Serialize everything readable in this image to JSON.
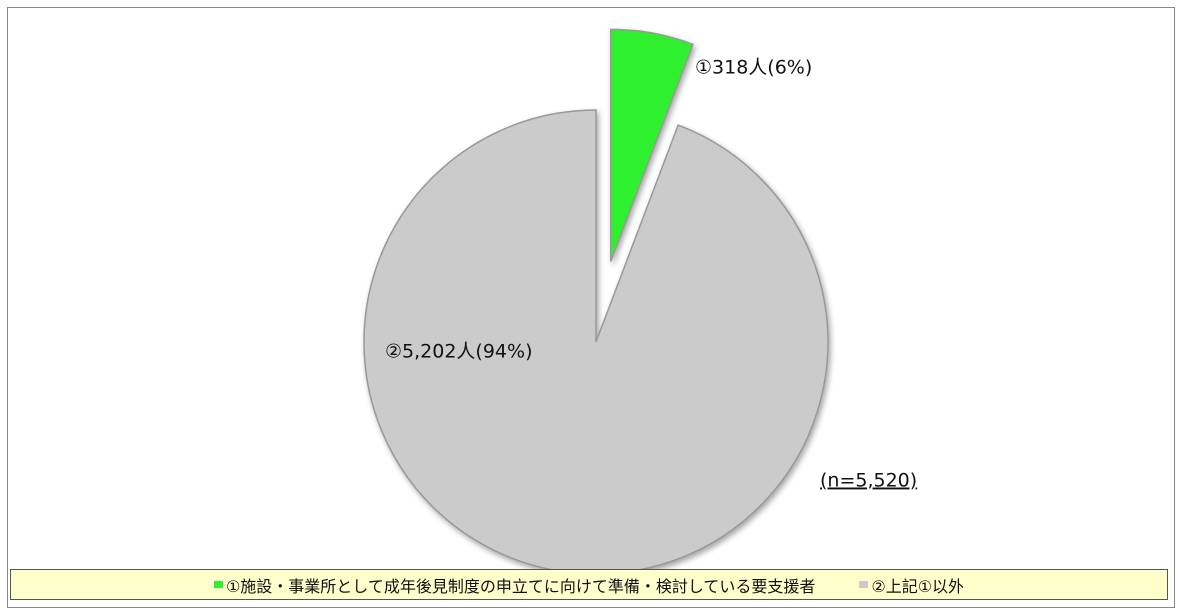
{
  "chart_data": {
    "type": "pie",
    "categories": [
      "①施設・事業所として成年後見制度の申立てに向けて準備・検討している要支援者",
      "②上記①以外"
    ],
    "values": [
      318,
      5202
    ],
    "value_labels": [
      "①318人(6%)",
      "②5,202人(94%)"
    ],
    "colors": [
      "#2ef02e",
      "#cbcbcb"
    ],
    "annotation": "(n=5,520)"
  }
}
